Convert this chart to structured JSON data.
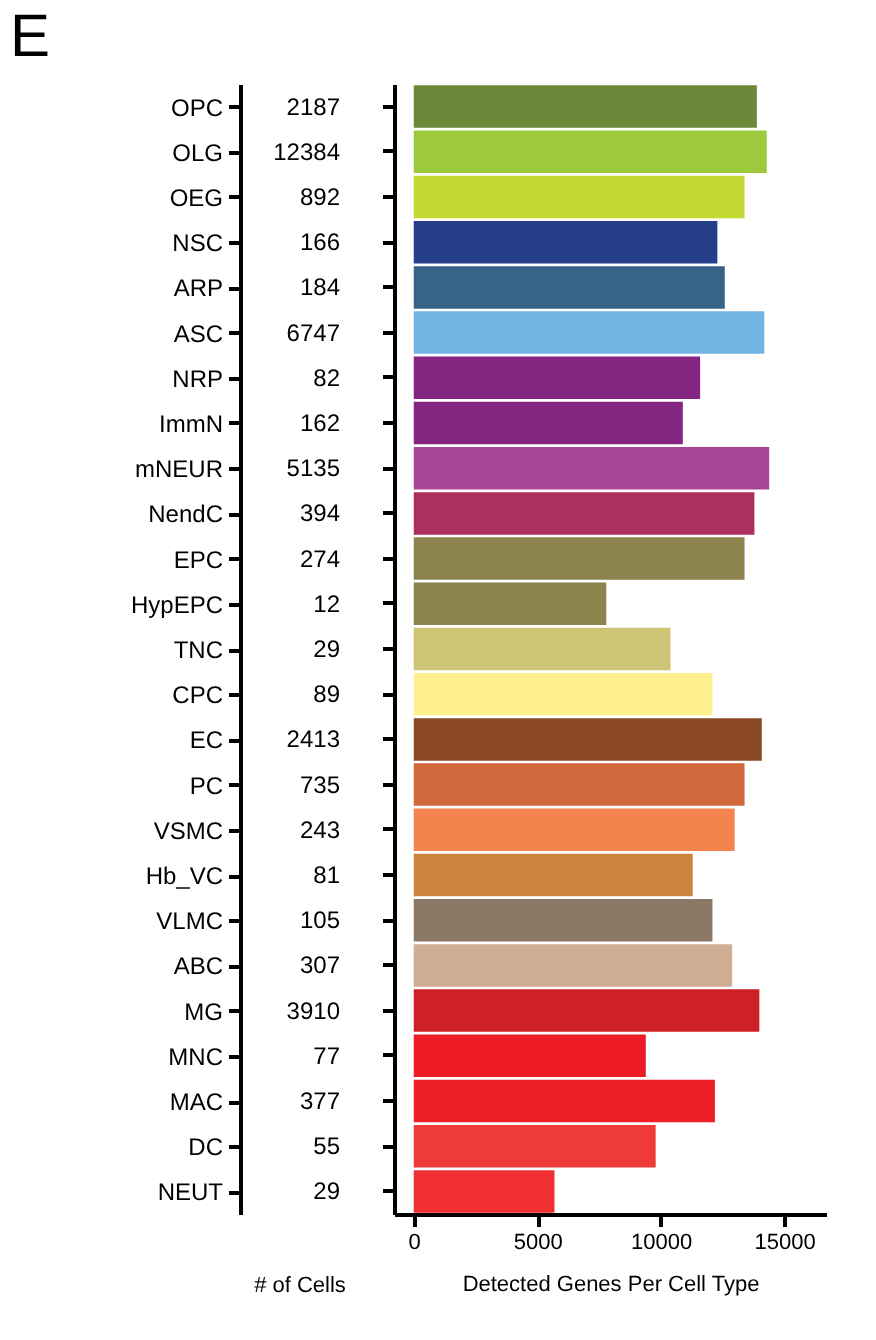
{
  "chart_data": [
    {
      "type": "other",
      "title": "E",
      "xlabel": "# of Cells",
      "data_labels": true,
      "categories": [
        "OPC",
        "OLG",
        "OEG",
        "NSC",
        "ARP",
        "ASC",
        "NRP",
        "ImmN",
        "mNEUR",
        "NendC",
        "EPC",
        "HypEPC",
        "TNC",
        "CPC",
        "EC",
        "PC",
        "VSMC",
        "Hb_VC",
        "VLMC",
        "ABC",
        "MG",
        "MNC",
        "MAC",
        "DC",
        "NEUT"
      ],
      "values": [
        2187,
        12384,
        892,
        166,
        184,
        6747,
        82,
        162,
        5135,
        394,
        274,
        12,
        29,
        89,
        2413,
        735,
        243,
        81,
        105,
        307,
        3910,
        77,
        377,
        55,
        29
      ]
    },
    {
      "type": "bar",
      "orientation": "horizontal",
      "xlabel": "Detected Genes Per Cell Type",
      "tick_labels": "x",
      "values": [
        13900,
        14300,
        13400,
        12300,
        12600,
        14200,
        11600,
        10900,
        14400,
        13800,
        13400,
        7800,
        10400,
        12100,
        14100,
        13400,
        13000,
        11300,
        12100,
        12900,
        14000,
        9400,
        12200,
        9800,
        5700
      ],
      "colors": [
        "#6a8a3a",
        "#9dca3c",
        "#c3d932",
        "#253f8a",
        "#356389",
        "#73b3e2",
        "#852582",
        "#852582",
        "#a84496",
        "#ad2f5e",
        "#8b824c",
        "#8b824c",
        "#cdc575",
        "#fef18e",
        "#8b4826",
        "#cf693b",
        "#f5834e",
        "#cd853e",
        "#8b7866",
        "#cfae94",
        "#ce2027",
        "#ed1c24",
        "#ee2026",
        "#ef3a3a",
        "#f02f33"
      ],
      "xlim": [
        -800,
        16700
      ],
      "xticks": [
        0,
        5000,
        10000,
        15000
      ]
    }
  ]
}
